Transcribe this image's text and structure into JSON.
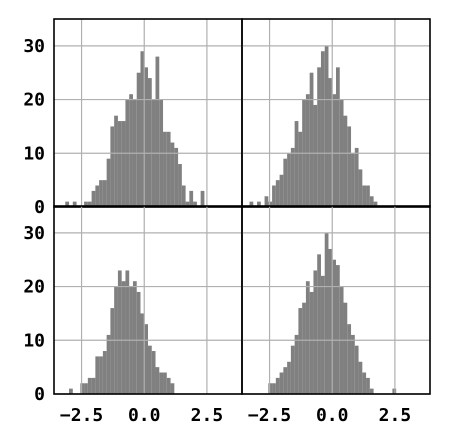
{
  "chart_data": {
    "type": "histogram-grid",
    "layout": {
      "rows": 2,
      "cols": 2,
      "sharex": true,
      "sharey": true
    },
    "bar_color": "#808080",
    "grid": true,
    "grid_color": "#b0b0b0",
    "xlim": [
      -3.6,
      3.9
    ],
    "ylim": [
      0,
      35
    ],
    "xticks": [
      -2.5,
      0.0,
      2.5
    ],
    "xtick_labels": [
      "−2.5",
      "0.0",
      "2.5"
    ],
    "yticks": [
      0,
      10,
      20,
      30
    ],
    "ytick_labels": [
      "0",
      "10",
      "20",
      "30"
    ],
    "bin_width": 0.15,
    "panels": [
      {
        "position": "top-left",
        "bin_start": -3.15,
        "counts": [
          1,
          0,
          1,
          0,
          0,
          1,
          1,
          3,
          4,
          5,
          5,
          9,
          15,
          17,
          16,
          16,
          20,
          21,
          20,
          25,
          29,
          26,
          24,
          20,
          28,
          20,
          14,
          14,
          12,
          11,
          8,
          4,
          1,
          3,
          1,
          0,
          3
        ]
      },
      {
        "position": "top-right",
        "bin_start": -3.3,
        "counts": [
          1,
          0,
          1,
          0,
          2,
          1,
          4,
          5,
          6,
          9,
          10,
          11,
          16,
          14,
          20,
          21,
          25,
          19,
          26,
          29,
          30,
          24,
          21,
          26,
          20,
          17,
          15,
          10,
          11,
          7,
          4,
          4,
          2,
          1
        ]
      },
      {
        "position": "bottom-left",
        "bin_start": -3.0,
        "counts": [
          1,
          0,
          0,
          2,
          2,
          3,
          3,
          7,
          7,
          8,
          11,
          16,
          20,
          23,
          21,
          23,
          20,
          21,
          19,
          15,
          13,
          9,
          8,
          5,
          4,
          4,
          3,
          2
        ]
      },
      {
        "position": "bottom-right",
        "bin_start": -2.55,
        "counts": [
          2,
          2,
          3,
          4,
          5,
          6,
          9,
          11,
          16,
          17,
          21,
          19,
          23,
          26,
          22,
          30,
          27,
          25,
          24,
          20,
          17,
          13,
          11,
          9,
          6,
          4,
          3,
          1,
          0,
          0,
          0,
          0,
          0,
          1
        ]
      }
    ]
  }
}
